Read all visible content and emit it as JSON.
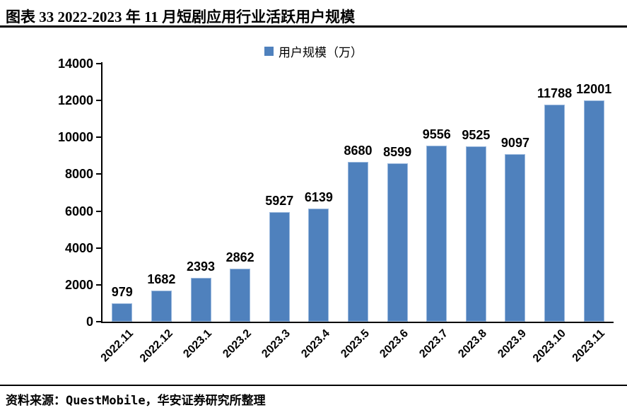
{
  "header": {
    "title": "图表 33 2022-2023 年 11 月短剧应用行业活跃用户规模"
  },
  "footer": {
    "source": "资料来源：QuestMobile，华安证券研究所整理"
  },
  "colors": {
    "bar_fill": "#4f81bd",
    "bar_border": "#9bb9de",
    "axis": "#000000",
    "text": "#000000"
  },
  "chart_data": {
    "type": "bar",
    "legend": "用户规模（万）",
    "legend_position": "top-center",
    "categories": [
      "2022.11",
      "2022.12",
      "2023.1",
      "2023.2",
      "2023.3",
      "2023.4",
      "2023.5",
      "2023.6",
      "2023.7",
      "2023.8",
      "2023.9",
      "2023.10",
      "2023.11"
    ],
    "values": [
      979,
      1682,
      2393,
      2862,
      5927,
      6139,
      8680,
      8599,
      9556,
      9525,
      9097,
      11788,
      12001
    ],
    "title": "",
    "xlabel": "",
    "ylabel": "",
    "ylim": [
      0,
      14000
    ],
    "yticks": [
      0,
      2000,
      4000,
      6000,
      8000,
      10000,
      12000,
      14000
    ],
    "grid": false
  }
}
